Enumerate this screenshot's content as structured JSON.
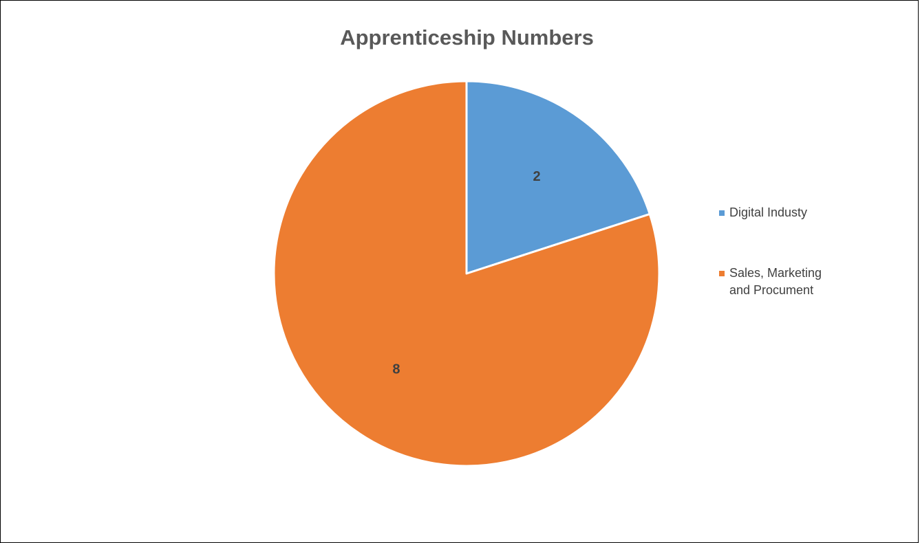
{
  "chart_data": {
    "type": "pie",
    "title": "Apprenticeship Numbers",
    "categories": [
      "Digital Industy",
      "Sales, Marketing and Procument"
    ],
    "values": [
      2,
      8
    ],
    "data_labels": [
      "2",
      "8"
    ],
    "colors": [
      "#5B9BD5",
      "#ED7D31"
    ],
    "start_angle": "12 o'clock",
    "direction": "clockwise",
    "legend": {
      "placement": "right",
      "entries": [
        {
          "label_line1": "Digital Industy",
          "label_line2": ""
        },
        {
          "label_line1": "Sales, Marketing",
          "label_line2": "and Procument"
        }
      ]
    }
  }
}
